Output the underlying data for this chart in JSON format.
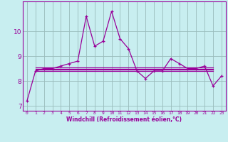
{
  "x": [
    0,
    1,
    2,
    3,
    4,
    5,
    6,
    7,
    8,
    9,
    10,
    11,
    12,
    13,
    14,
    15,
    16,
    17,
    18,
    19,
    20,
    21,
    22,
    23
  ],
  "y_main": [
    7.2,
    8.4,
    8.5,
    8.5,
    8.6,
    8.7,
    8.8,
    10.6,
    9.4,
    9.6,
    10.8,
    9.7,
    9.3,
    8.4,
    8.1,
    8.4,
    8.4,
    8.9,
    8.7,
    8.5,
    8.5,
    8.6,
    7.8,
    8.2
  ],
  "flat_lines": [
    {
      "x": [
        1,
        22
      ],
      "y": [
        8.4,
        8.4
      ]
    },
    {
      "x": [
        1,
        22
      ],
      "y": [
        8.45,
        8.45
      ]
    },
    {
      "x": [
        1,
        22
      ],
      "y": [
        8.5,
        8.5
      ]
    },
    {
      "x": [
        1,
        22
      ],
      "y": [
        8.55,
        8.55
      ]
    }
  ],
  "line_color": "#990099",
  "bg_color": "#c8eef0",
  "grid_color": "#99bbbb",
  "xlabel": "Windchill (Refroidissement éolien,°C)",
  "ylim": [
    6.8,
    11.2
  ],
  "xlim": [
    -0.5,
    23.5
  ],
  "yticks": [
    7,
    8,
    9,
    10
  ],
  "xticks": [
    0,
    1,
    2,
    3,
    4,
    5,
    6,
    7,
    8,
    9,
    10,
    11,
    12,
    13,
    14,
    15,
    16,
    17,
    18,
    19,
    20,
    21,
    22,
    23
  ]
}
